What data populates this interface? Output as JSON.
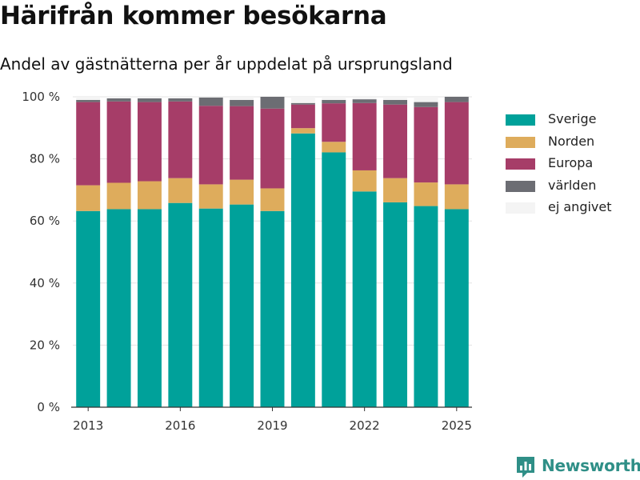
{
  "header": {
    "title": "Härifrån kommer besökarna",
    "subtitle": "Andel av gästnätterna per år uppdelat på ursprungsland"
  },
  "brand": {
    "label": "Newsworthy",
    "icon": "newsworthy-logo-icon",
    "color": "#2f8f87"
  },
  "chart_data": {
    "type": "bar",
    "stacked": true,
    "title": "Härifrån kommer besökarna",
    "subtitle": "Andel av gästnätterna per år uppdelat på ursprungsland",
    "x": [
      2013,
      2014,
      2015,
      2016,
      2017,
      2018,
      2019,
      2020,
      2021,
      2022,
      2023,
      2024,
      2025
    ],
    "x_ticks": [
      "2013",
      "2016",
      "2019",
      "2022",
      "2025"
    ],
    "y_ticks": [
      "0 %",
      "20 %",
      "40 %",
      "60 %",
      "80 %",
      "100 %"
    ],
    "ylim": [
      0,
      100
    ],
    "y_unit": "%",
    "grid": true,
    "legend_position": "right",
    "series": [
      {
        "name": "Sverige",
        "color": "#00a19a",
        "values": [
          63.2,
          63.8,
          63.8,
          65.8,
          64.0,
          65.3,
          63.2,
          88.2,
          82.1,
          69.5,
          66.0,
          64.8,
          63.8
        ]
      },
      {
        "name": "Norden",
        "color": "#deac5c",
        "values": [
          8.3,
          8.5,
          9.0,
          8.0,
          7.8,
          8.0,
          7.3,
          1.7,
          3.4,
          6.8,
          7.8,
          7.6,
          8.0
        ]
      },
      {
        "name": "Europa",
        "color": "#a63d68",
        "values": [
          26.8,
          26.2,
          25.5,
          24.7,
          25.3,
          23.7,
          25.7,
          7.6,
          12.4,
          21.7,
          23.7,
          24.3,
          26.5
        ]
      },
      {
        "name": "världen",
        "color": "#6c6d73",
        "values": [
          0.7,
          1.0,
          1.2,
          1.0,
          2.7,
          2.0,
          3.8,
          0.5,
          1.1,
          1.2,
          1.5,
          1.6,
          1.7
        ]
      },
      {
        "name": "ej angivet",
        "color": "#f4f4f4",
        "values": [
          1.0,
          0.5,
          0.5,
          0.5,
          0.2,
          1.0,
          0.0,
          2.0,
          1.0,
          0.8,
          1.0,
          1.7,
          0.0
        ]
      }
    ]
  }
}
